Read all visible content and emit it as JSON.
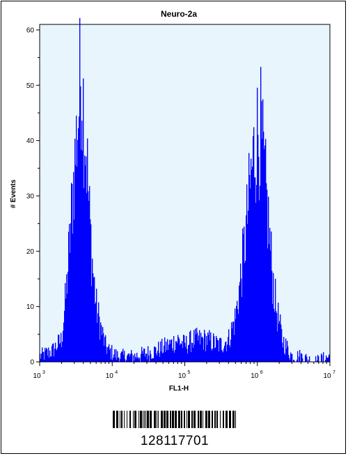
{
  "chart_data": {
    "type": "histogram",
    "title": "Neuro-2a",
    "xlabel": "FL1-H",
    "ylabel": "# Events",
    "x_scale": "log",
    "xlim": [
      1000,
      10000000
    ],
    "ylim": [
      0,
      61
    ],
    "y_ticks": [
      0,
      10,
      20,
      30,
      40,
      50,
      60
    ],
    "x_ticks": [
      {
        "value": 1000,
        "base": "10",
        "exp": "3"
      },
      {
        "value": 10000,
        "base": "10",
        "exp": "4"
      },
      {
        "value": 100000,
        "base": "10",
        "exp": "5"
      },
      {
        "value": 1000000,
        "base": "10",
        "exp": "6"
      },
      {
        "value": 10000000,
        "base": "10",
        "exp": "7"
      }
    ],
    "grid": false,
    "background_color": "#e8f5fc",
    "fill_color": "#0000ff",
    "series": [
      {
        "x": [
          1000,
          1500,
          2000,
          2300,
          2600,
          2900,
          3200,
          3500,
          3700,
          4000,
          4400,
          4800,
          5300,
          6000,
          7000,
          8000,
          9000,
          12000,
          20000,
          40000,
          60000,
          80000,
          100000,
          130000,
          200000,
          300000,
          400000,
          500000,
          600000,
          700000,
          800000,
          900000,
          1000000,
          1100000,
          1200000,
          1400000,
          1600000,
          1800000,
          2200000,
          3000000,
          4000000,
          6000000,
          10000000
        ],
        "y": [
          1,
          2,
          4,
          12,
          22,
          32,
          40,
          47,
          54,
          46,
          38,
          27,
          18,
          10,
          6,
          3,
          2,
          1,
          1,
          2,
          3,
          4,
          3,
          4,
          4,
          3,
          4,
          8,
          16,
          24,
          32,
          38,
          41,
          42,
          36,
          26,
          16,
          10,
          4,
          1,
          1,
          0,
          1
        ]
      }
    ]
  },
  "sample_id": "128117701"
}
